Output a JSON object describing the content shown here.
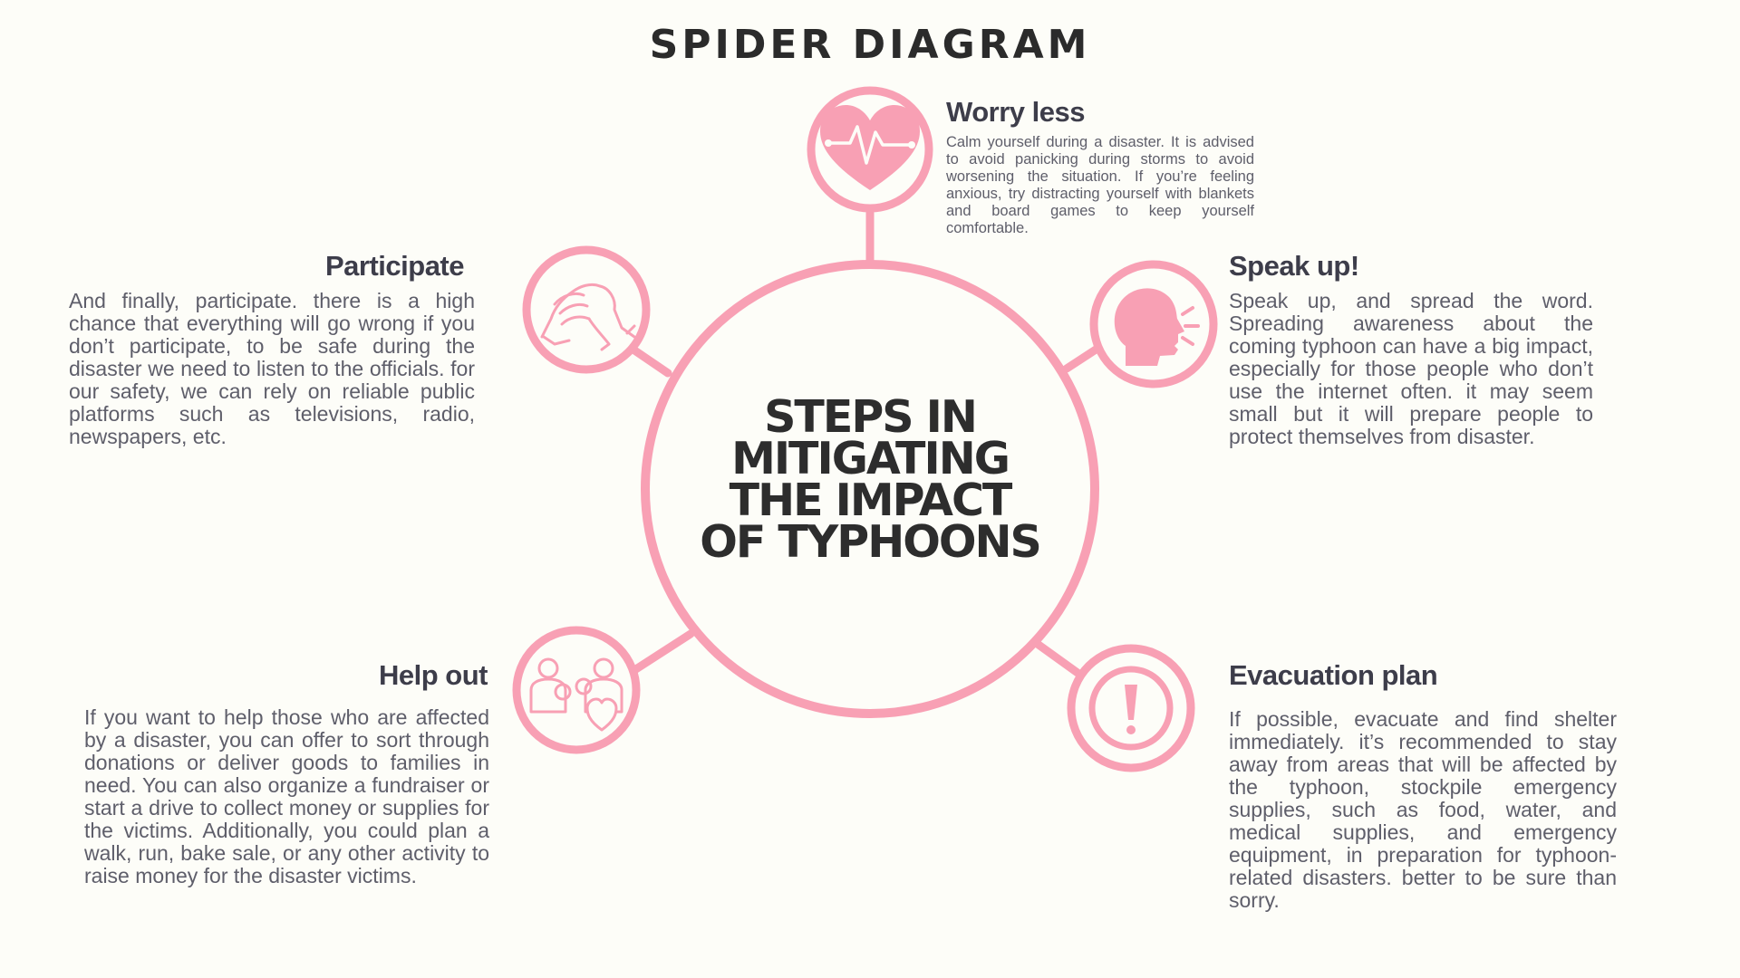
{
  "title": "SPIDER DIAGRAM",
  "center": {
    "lines": [
      "STEPS IN",
      "MITIGATING",
      "THE IMPACT",
      "OF TYPHOONS"
    ]
  },
  "colors": {
    "accent": "#f8a0b4",
    "heading": "#3d3d4a",
    "body": "#5e5e6a",
    "title": "#2b2b2b",
    "background": "#fdfdf8"
  },
  "nodes": {
    "worry_less": {
      "icon": "heart-pulse-icon",
      "heading": "Worry less",
      "text": "Calm yourself during a disaster. It is advised to avoid panicking during storms to avoid worsening the situation. If you’re feeling anxious, try distracting yourself with blankets and board games to keep yourself comfortable."
    },
    "speak_up": {
      "icon": "speaking-head-icon",
      "heading": "Speak up!",
      "text": "Speak up, and spread the word. Spreading awareness about the coming typhoon can have a big impact, especially for those people who don’t use the internet often. it may seem small but it will prepare people to protect themselves from disaster."
    },
    "participate": {
      "icon": "handshake-icon",
      "heading": "Participate",
      "text": "And finally, participate. there is a high chance that everything will go wrong if you don’t participate, to be safe during the disaster we need to listen to the officials. for our safety, we can rely on reliable public platforms such as televisions, radio, newspapers, etc."
    },
    "help_out": {
      "icon": "family-heart-icon",
      "heading": "Help out",
      "text": "If you want to help those who are affected by a disaster, you can offer to sort through donations or deliver goods to families in need. You can also organize a fundraiser or start a drive to collect money or supplies for the victims. Additionally, you could plan a walk, run, bake sale, or any other activity to raise money for the disaster victims."
    },
    "evacuation_plan": {
      "icon": "exclamation-icon",
      "heading": "Evacuation plan",
      "text": "If possible, evacuate and find shelter immediately. it’s recommended to stay away from areas that will be affected by the typhoon, stockpile emergency supplies, such as food, water, and medical supplies, and emergency equipment, in preparation for typhoon-related disasters. better to be sure than sorry."
    }
  }
}
